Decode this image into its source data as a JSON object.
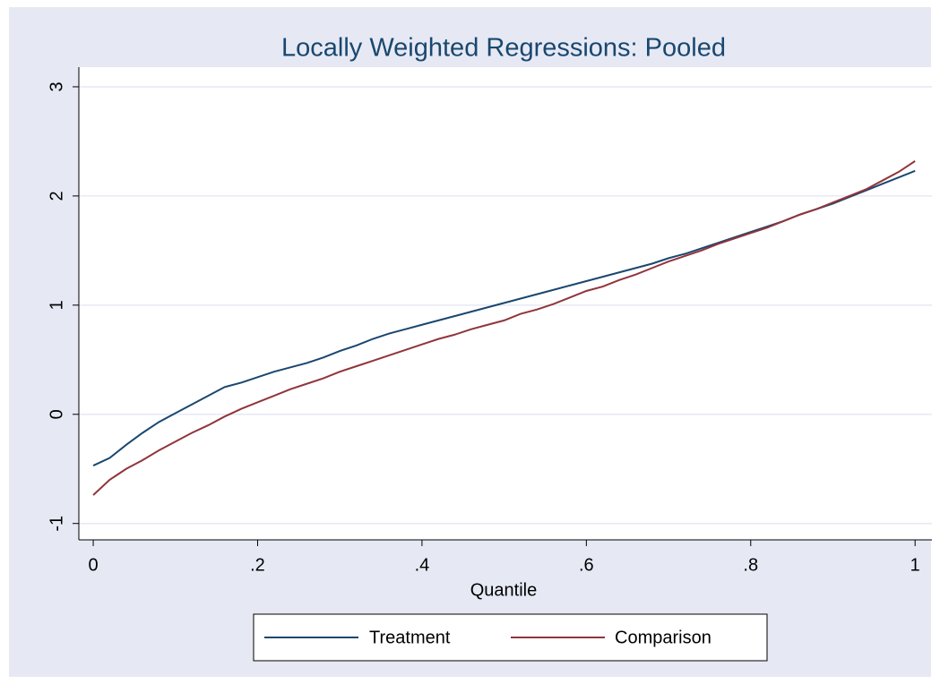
{
  "chart_data": {
    "type": "line",
    "title": "Locally Weighted Regressions: Pooled",
    "xlabel": "Quantile",
    "x": [
      0,
      0.02,
      0.04,
      0.06,
      0.08,
      0.1,
      0.12,
      0.14,
      0.16,
      0.18,
      0.2,
      0.22,
      0.24,
      0.26,
      0.28,
      0.3,
      0.32,
      0.34,
      0.36,
      0.38,
      0.4,
      0.42,
      0.44,
      0.46,
      0.48,
      0.5,
      0.52,
      0.54,
      0.56,
      0.58,
      0.6,
      0.62,
      0.64,
      0.66,
      0.68,
      0.7,
      0.72,
      0.74,
      0.76,
      0.78,
      0.8,
      0.82,
      0.84,
      0.86,
      0.88,
      0.9,
      0.92,
      0.94,
      0.96,
      0.98,
      1
    ],
    "series": [
      {
        "name": "Treatment",
        "color": "#1a476f",
        "values": [
          -0.47,
          -0.4,
          -0.28,
          -0.17,
          -0.07,
          0.01,
          0.09,
          0.17,
          0.25,
          0.29,
          0.34,
          0.39,
          0.43,
          0.47,
          0.52,
          0.58,
          0.63,
          0.69,
          0.74,
          0.78,
          0.82,
          0.86,
          0.9,
          0.94,
          0.98,
          1.02,
          1.06,
          1.1,
          1.14,
          1.18,
          1.22,
          1.26,
          1.3,
          1.34,
          1.38,
          1.43,
          1.47,
          1.52,
          1.57,
          1.62,
          1.67,
          1.72,
          1.77,
          1.83,
          1.88,
          1.93,
          1.99,
          2.05,
          2.11,
          2.17,
          2.23
        ]
      },
      {
        "name": "Comparison",
        "color": "#90353b",
        "values": [
          -0.74,
          -0.6,
          -0.5,
          -0.42,
          -0.33,
          -0.25,
          -0.17,
          -0.1,
          -0.02,
          0.05,
          0.11,
          0.17,
          0.23,
          0.28,
          0.33,
          0.39,
          0.44,
          0.49,
          0.54,
          0.59,
          0.64,
          0.69,
          0.73,
          0.78,
          0.82,
          0.86,
          0.92,
          0.96,
          1.01,
          1.07,
          1.13,
          1.17,
          1.23,
          1.28,
          1.34,
          1.4,
          1.45,
          1.5,
          1.56,
          1.61,
          1.66,
          1.71,
          1.77,
          1.83,
          1.88,
          1.94,
          2.0,
          2.06,
          2.14,
          2.22,
          2.32
        ]
      }
    ],
    "xlim": [
      -0.0175,
      1.0205
    ],
    "ylim": [
      -1.15,
      3.18
    ],
    "xticks": [
      0,
      {
        "value": 0.2,
        "label": ".2"
      },
      {
        "value": 0.4,
        "label": ".4"
      },
      {
        "value": 0.6,
        "label": ".6"
      },
      {
        "value": 0.8,
        "label": ".8"
      },
      1
    ],
    "yticks": [
      -1,
      0,
      1,
      2,
      3
    ],
    "grid": true,
    "legend": "bottom"
  }
}
